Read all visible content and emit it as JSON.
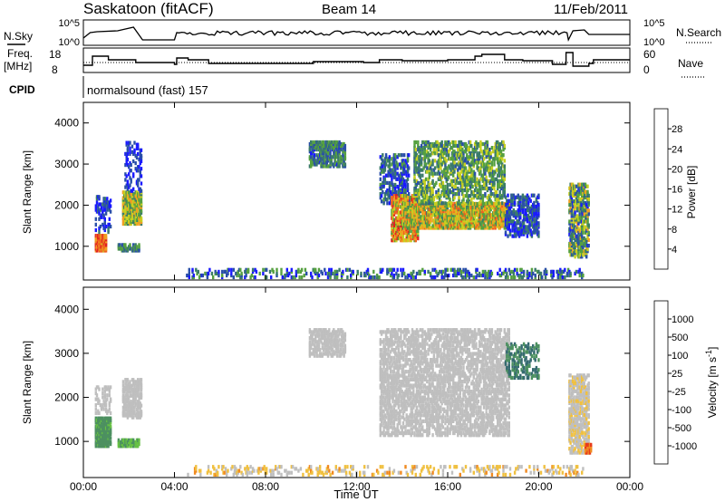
{
  "header": {
    "station": "Saskatoon (fitACF)",
    "beam": "Beam 14",
    "date": "11/Feb/2011"
  },
  "strip1": {
    "left_label": "N.Sky",
    "right_label": "N.Search",
    "left_ticks": [
      "10^5",
      "10^0"
    ],
    "right_ticks": [
      "10^5",
      "10^0"
    ]
  },
  "strip2": {
    "left_label_1": "Freq.",
    "left_label_2": "[MHz]",
    "right_label": "Nave",
    "left_ticks": [
      "18",
      "8"
    ],
    "right_ticks": [
      "60",
      "0"
    ]
  },
  "cpid": {
    "label": "CPID",
    "value": "normalsound (fast) 157"
  },
  "x_axis": {
    "title": "Time UT",
    "ticks": [
      "00:00",
      "04:00",
      "08:00",
      "12:00",
      "16:00",
      "20:00",
      "00:00"
    ]
  },
  "colors": {
    "power": [
      "#1a1aff",
      "#2a4fa8",
      "#3a7a6a",
      "#55a040",
      "#c8d020",
      "#f0a020",
      "#f06020",
      "#e02020"
    ],
    "velocity": [
      "#2c3fa0",
      "#356a70",
      "#4c9060",
      "#66c044",
      "#bfbfbf",
      "#f0c040",
      "#f08a20",
      "#e83a1a",
      "#e01010"
    ]
  },
  "chart_data": [
    {
      "type": "heatmap",
      "title": "Power",
      "ylabel": "Slant Range [km]",
      "xlabel": "Time UT",
      "y_ticks": [
        "1000",
        "2000",
        "3000",
        "4000"
      ],
      "ylim": [
        180,
        4500
      ],
      "xlim_hours": [
        0,
        24
      ],
      "colorbar_label": "Power [dB]",
      "colorbar_ticks": [
        "28",
        "24",
        "20",
        "16",
        "12",
        "8",
        "4"
      ],
      "colorbar_range": [
        0,
        30
      ],
      "regions": [
        {
          "t": [
            0.5,
            1.0
          ],
          "r": [
            850,
            1250
          ],
          "level": [
            0.6,
            1.0
          ],
          "density": 0.95
        },
        {
          "t": [
            0.5,
            1.2
          ],
          "r": [
            1300,
            2200
          ],
          "level": [
            0.0,
            0.3
          ],
          "density": 0.3
        },
        {
          "t": [
            1.5,
            2.4
          ],
          "r": [
            850,
            1000
          ],
          "level": [
            0.1,
            0.5
          ],
          "density": 0.7
        },
        {
          "t": [
            1.7,
            2.5
          ],
          "r": [
            1500,
            2300
          ],
          "level": [
            0.3,
            0.75
          ],
          "density": 0.7
        },
        {
          "t": [
            1.8,
            2.5
          ],
          "r": [
            2300,
            3500
          ],
          "level": [
            0.0,
            0.25
          ],
          "density": 0.2
        },
        {
          "t": [
            9.9,
            11.5
          ],
          "r": [
            2900,
            3500
          ],
          "level": [
            0.1,
            0.5
          ],
          "density": 0.55
        },
        {
          "t": [
            13.0,
            14.3
          ],
          "r": [
            2000,
            3200
          ],
          "level": [
            0.0,
            0.4
          ],
          "density": 0.35
        },
        {
          "t": [
            13.5,
            14.7
          ],
          "r": [
            1100,
            2200
          ],
          "level": [
            0.4,
            0.95
          ],
          "density": 0.6
        },
        {
          "t": [
            14.0,
            18.7
          ],
          "r": [
            1400,
            2000
          ],
          "level": [
            0.35,
            0.8
          ],
          "density": 0.7
        },
        {
          "t": [
            14.5,
            18.5
          ],
          "r": [
            2000,
            3500
          ],
          "level": [
            0.2,
            0.6
          ],
          "density": 0.35
        },
        {
          "t": [
            18.5,
            20.0
          ],
          "r": [
            1200,
            2200
          ],
          "level": [
            0.0,
            0.35
          ],
          "density": 0.4
        },
        {
          "t": [
            21.3,
            22.2
          ],
          "r": [
            700,
            2500
          ],
          "level": [
            0.1,
            0.7
          ],
          "density": 0.5
        },
        {
          "t": [
            4.5,
            22.0
          ],
          "r": [
            200,
            420
          ],
          "level": [
            0.0,
            0.5
          ],
          "density": 0.22
        }
      ]
    },
    {
      "type": "heatmap",
      "title": "Velocity",
      "ylabel": "Slant Range [km]",
      "xlabel": "Time UT",
      "y_ticks": [
        "1000",
        "2000",
        "3000",
        "4000"
      ],
      "ylim": [
        180,
        4500
      ],
      "xlim_hours": [
        0,
        24
      ],
      "colorbar_label": "Velocity [m s^-1]",
      "colorbar_ticks": [
        "1000",
        "500",
        "100",
        "25",
        "-25",
        "-100",
        "-500",
        "-1000"
      ],
      "colorbar_range": [
        -1000,
        1000
      ],
      "regions": [
        {
          "t": [
            0.5,
            1.2
          ],
          "r": [
            850,
            1500
          ],
          "level": [
            0.25,
            0.35
          ],
          "density": 0.9
        },
        {
          "t": [
            0.5,
            1.2
          ],
          "r": [
            1600,
            2200
          ],
          "level": [
            0.45,
            0.55
          ],
          "density": 0.3
        },
        {
          "t": [
            1.5,
            2.4
          ],
          "r": [
            850,
            1000
          ],
          "level": [
            0.3,
            0.4
          ],
          "density": 0.7
        },
        {
          "t": [
            1.7,
            2.5
          ],
          "r": [
            1500,
            2400
          ],
          "level": [
            0.45,
            0.55
          ],
          "density": 0.6
        },
        {
          "t": [
            9.9,
            11.5
          ],
          "r": [
            2900,
            3500
          ],
          "level": [
            0.45,
            0.55
          ],
          "density": 0.5
        },
        {
          "t": [
            13.0,
            18.7
          ],
          "r": [
            1100,
            3500
          ],
          "level": [
            0.45,
            0.55
          ],
          "density": 0.45
        },
        {
          "t": [
            18.5,
            20.0
          ],
          "r": [
            2400,
            3200
          ],
          "level": [
            0.15,
            0.3
          ],
          "density": 0.3
        },
        {
          "t": [
            21.3,
            22.2
          ],
          "r": [
            700,
            2500
          ],
          "level": [
            0.45,
            0.6
          ],
          "density": 0.5
        },
        {
          "t": [
            22.0,
            22.3
          ],
          "r": [
            700,
            900
          ],
          "level": [
            0.7,
            0.85
          ],
          "density": 0.8
        },
        {
          "t": [
            4.5,
            22.0
          ],
          "r": [
            200,
            420
          ],
          "level": [
            0.45,
            0.7
          ],
          "density": 0.18
        }
      ]
    }
  ]
}
